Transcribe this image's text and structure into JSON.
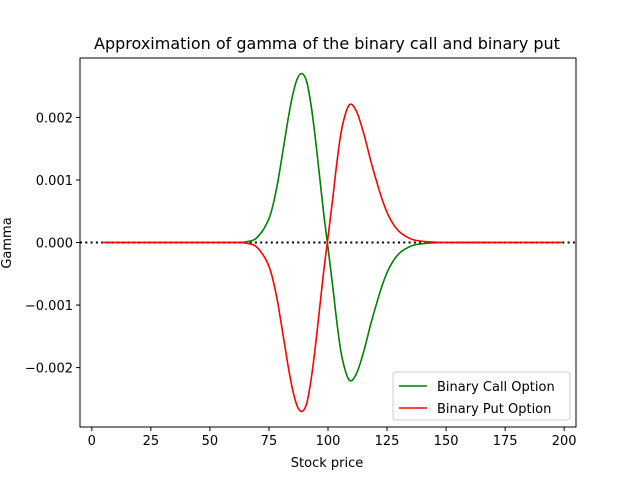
{
  "chart_data": {
    "type": "line",
    "title": "Approximation of gamma of the binary call and binary put",
    "xlabel": "Stock price",
    "ylabel": "Gamma",
    "xlim": [
      -5,
      205
    ],
    "ylim": [
      -0.00295,
      0.00295
    ],
    "x_ticks": [
      0,
      25,
      50,
      75,
      100,
      125,
      150,
      175,
      200
    ],
    "x_tick_labels": [
      "0",
      "25",
      "50",
      "75",
      "100",
      "125",
      "150",
      "175",
      "200"
    ],
    "y_ticks": [
      -0.002,
      -0.001,
      0.0,
      0.001,
      0.002
    ],
    "y_tick_labels": [
      "−0.002",
      "−0.001",
      "0.000",
      "0.001",
      "0.002"
    ],
    "grid": false,
    "legend_position": "lower-right",
    "reference_line": {
      "y": 0,
      "style": "dotted",
      "color": "#000000"
    },
    "x": [
      5,
      30,
      50,
      60,
      65,
      70,
      75,
      78,
      80,
      83,
      85,
      87,
      89,
      91,
      93,
      95,
      98,
      100,
      102,
      104,
      106,
      109,
      112,
      115,
      118,
      120,
      123,
      126,
      130,
      135,
      140,
      150,
      170,
      199
    ],
    "series": [
      {
        "name": "Binary Call Option",
        "color": "#008000",
        "values": [
          0,
          0,
          0,
          2e-06,
          8e-06,
          8e-05,
          0.00038,
          0.00082,
          0.00125,
          0.00195,
          0.00235,
          0.00262,
          0.0027,
          0.00257,
          0.00215,
          0.00155,
          0.00052,
          -8e-05,
          -0.0007,
          -0.00135,
          -0.00185,
          -0.0022,
          -0.0021,
          -0.00176,
          -0.00132,
          -0.00105,
          -0.00068,
          -0.0004,
          -0.00018,
          -6e-05,
          -2e-05,
          0,
          0,
          0
        ]
      },
      {
        "name": "Binary Put Option",
        "color": "#ff0000",
        "values": [
          0,
          0,
          0,
          -2e-06,
          -8e-06,
          -8e-05,
          -0.00038,
          -0.00082,
          -0.00125,
          -0.00195,
          -0.00235,
          -0.00262,
          -0.0027,
          -0.00257,
          -0.00215,
          -0.00155,
          -0.00052,
          8e-05,
          0.0007,
          0.00135,
          0.00185,
          0.0022,
          0.0021,
          0.00176,
          0.00132,
          0.00105,
          0.00068,
          0.0004,
          0.00018,
          6e-05,
          2e-05,
          0,
          0,
          0
        ]
      }
    ]
  }
}
